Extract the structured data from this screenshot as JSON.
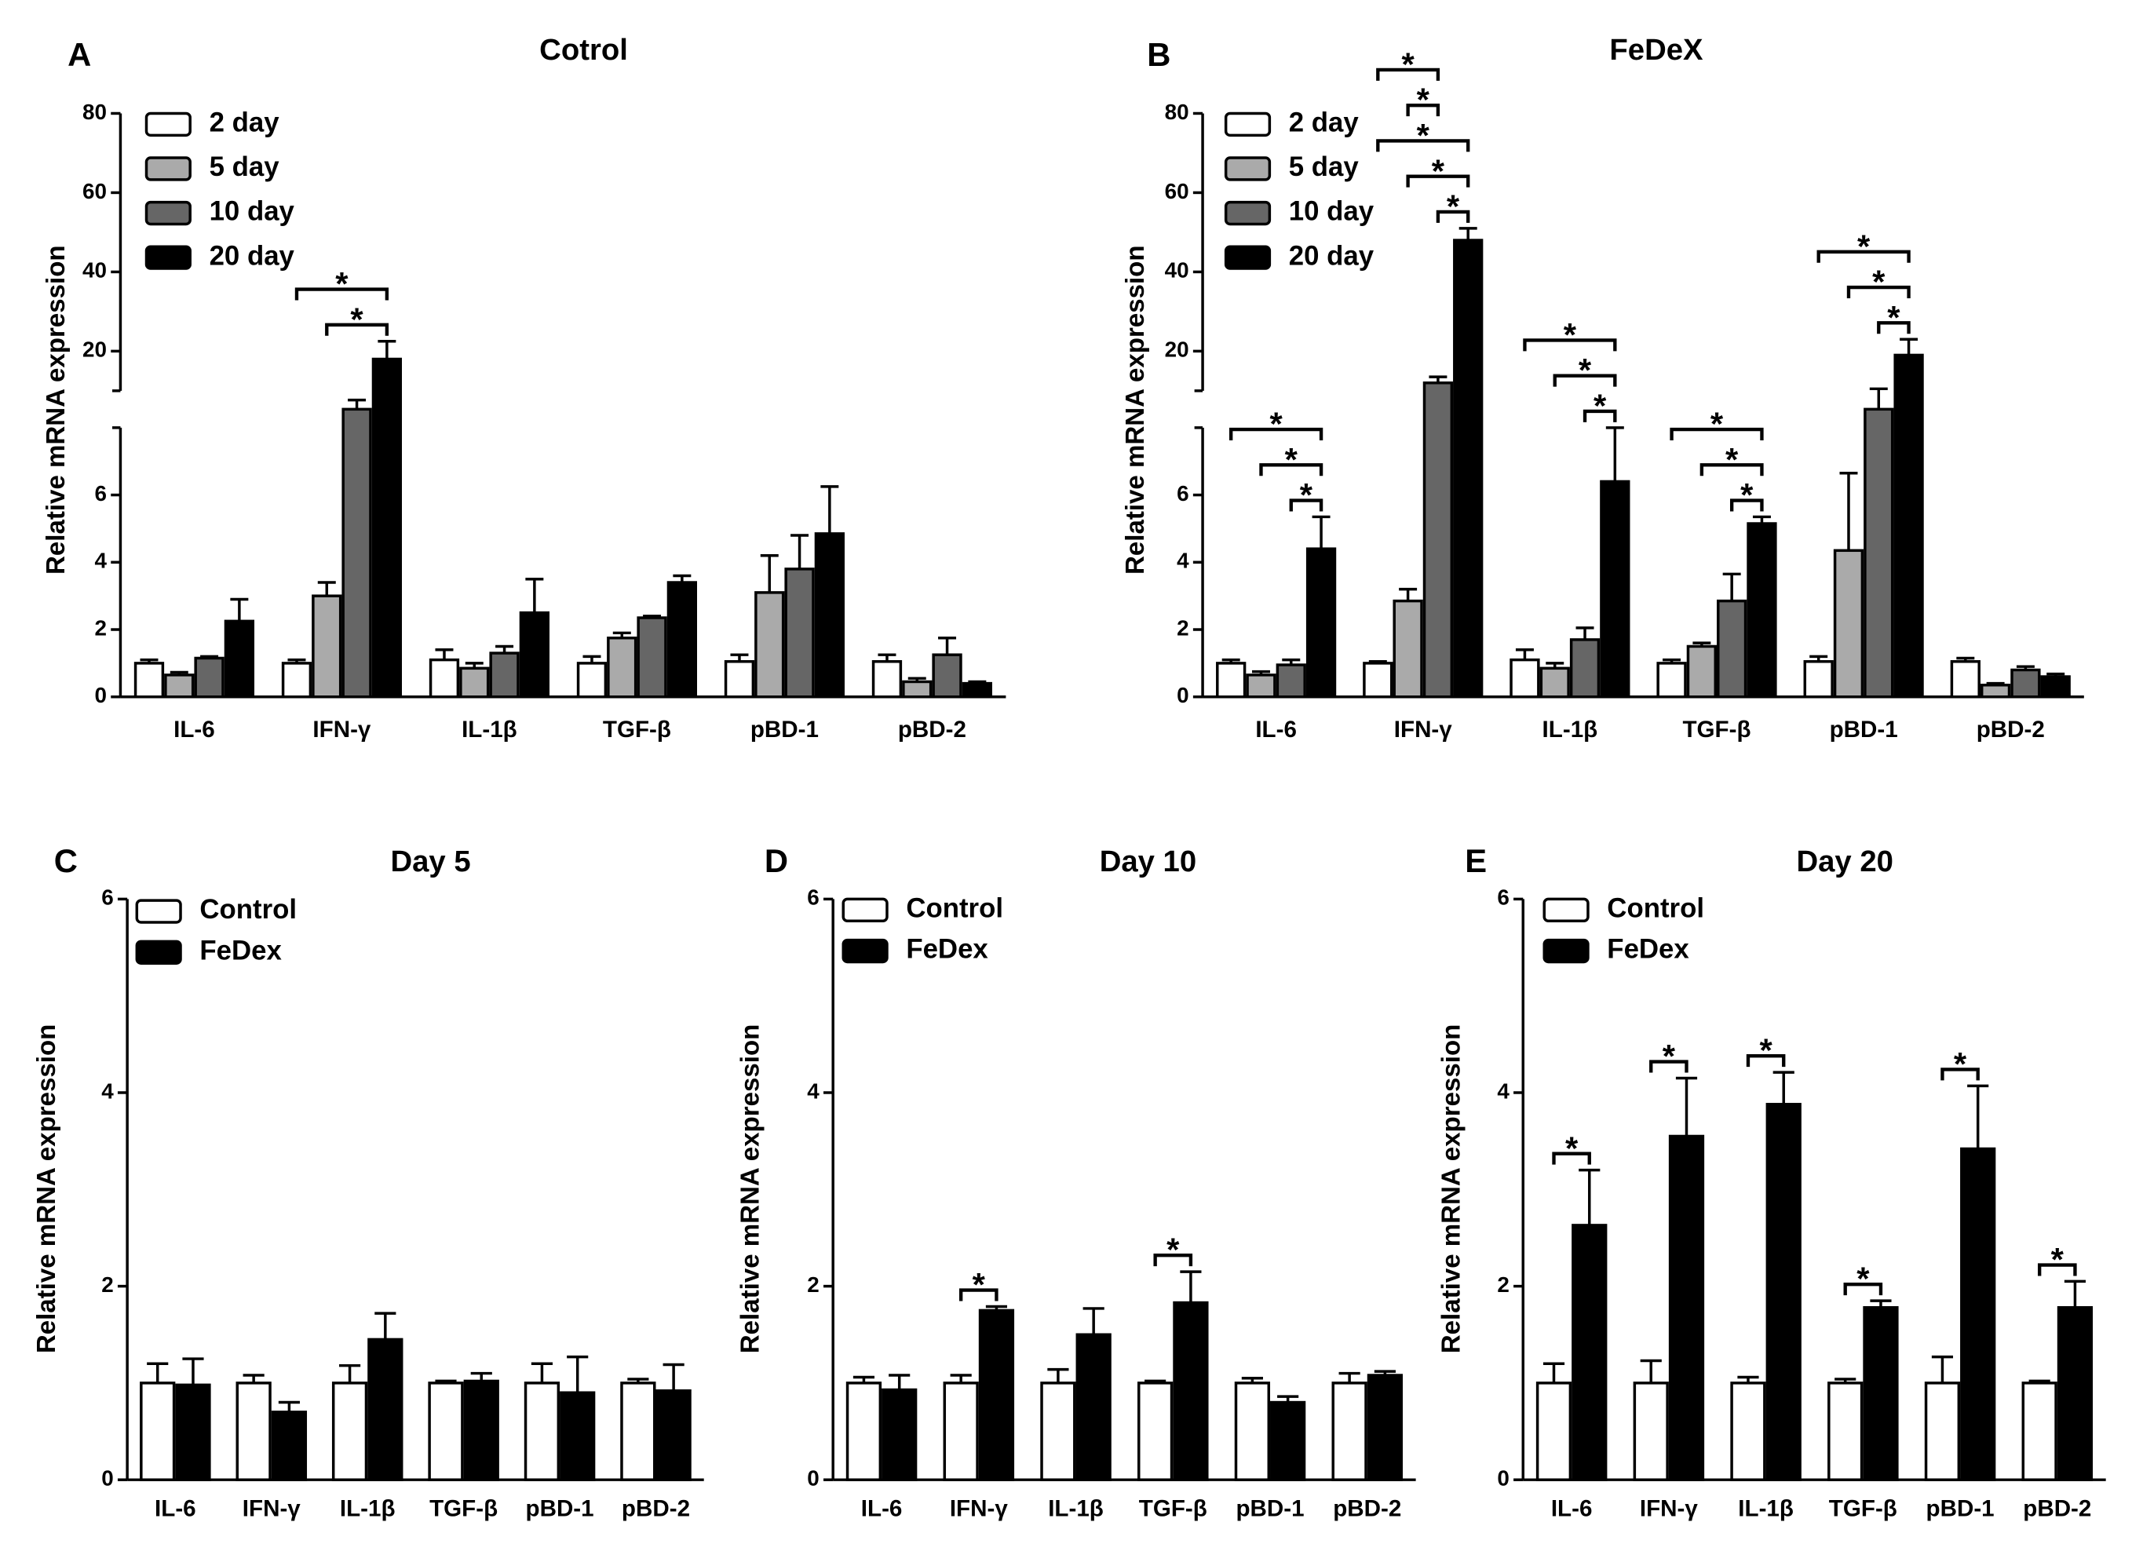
{
  "chart_data": [
    {
      "type": "bar",
      "panel": "A",
      "title": "Cotrol",
      "ylabel": "Relative mRNA expression",
      "categories": [
        "IL-6",
        "IFN-γ",
        "IL-1β",
        "TGF-β",
        "pBD-1",
        "pBD-2"
      ],
      "series": [
        {
          "name": "2 day",
          "color": "#ffffff",
          "values": [
            1.0,
            1.0,
            1.1,
            1.0,
            1.05,
            1.05
          ],
          "errors": [
            0.1,
            0.1,
            0.3,
            0.2,
            0.2,
            0.2
          ]
        },
        {
          "name": "5 day",
          "color": "#aaaaaa",
          "values": [
            0.65,
            3.0,
            0.85,
            1.75,
            3.1,
            0.45
          ],
          "errors": [
            0.08,
            0.4,
            0.15,
            0.15,
            1.1,
            0.1
          ]
        },
        {
          "name": "10 day",
          "color": "#666666",
          "values": [
            1.15,
            9,
            1.3,
            2.35,
            3.8,
            1.25
          ],
          "errors": [
            0.05,
            0.5,
            0.2,
            0.05,
            1.0,
            0.5
          ]
        },
        {
          "name": "20 day",
          "color": "#000000",
          "values": [
            2.25,
            18,
            2.5,
            3.4,
            4.85,
            0.4
          ],
          "errors": [
            0.65,
            4.5,
            1.0,
            0.2,
            1.4,
            0.05
          ]
        }
      ],
      "ylim": [
        0,
        80
      ],
      "axis_break": [
        8,
        10
      ],
      "yticks": [
        0,
        2,
        4,
        6,
        20,
        40,
        60,
        80
      ],
      "legend": "upper left",
      "significance": [
        {
          "category": "IFN-γ",
          "between": [
            "5 day",
            "20 day"
          ],
          "label": "*"
        },
        {
          "category": "IFN-γ",
          "between": [
            "2 day",
            "20 day"
          ],
          "label": "*"
        }
      ]
    },
    {
      "type": "bar",
      "panel": "B",
      "title": "FeDeX",
      "ylabel": "Relative mRNA expression",
      "categories": [
        "IL-6",
        "IFN-γ",
        "IL-1β",
        "TGF-β",
        "pBD-1",
        "pBD-2"
      ],
      "series": [
        {
          "name": "2 day",
          "color": "#ffffff",
          "values": [
            1.0,
            1.0,
            1.1,
            1.0,
            1.05,
            1.05
          ],
          "errors": [
            0.1,
            0.05,
            0.3,
            0.1,
            0.15,
            0.1
          ]
        },
        {
          "name": "5 day",
          "color": "#aaaaaa",
          "values": [
            0.65,
            2.85,
            0.85,
            1.5,
            4.35,
            0.35
          ],
          "errors": [
            0.1,
            0.35,
            0.15,
            0.1,
            2.3,
            0.05
          ]
        },
        {
          "name": "10 day",
          "color": "#666666",
          "values": [
            0.95,
            12,
            1.7,
            2.85,
            9,
            0.8
          ],
          "errors": [
            0.15,
            1.5,
            0.35,
            0.8,
            1.5,
            0.1
          ]
        },
        {
          "name": "20 day",
          "color": "#000000",
          "values": [
            4.4,
            48,
            6.4,
            5.15,
            19,
            0.6
          ],
          "errors": [
            0.95,
            3,
            1.6,
            0.2,
            4,
            0.08
          ]
        }
      ],
      "ylim": [
        0,
        80
      ],
      "axis_break": [
        8,
        10
      ],
      "yticks": [
        0,
        2,
        4,
        6,
        20,
        40,
        60,
        80
      ],
      "legend": "upper left",
      "significance": [
        {
          "category": "IL-6",
          "between": [
            "10 day",
            "20 day"
          ],
          "label": "*"
        },
        {
          "category": "IL-6",
          "between": [
            "5 day",
            "20 day"
          ],
          "label": "*"
        },
        {
          "category": "IL-6",
          "between": [
            "2 day",
            "20 day"
          ],
          "label": "*"
        },
        {
          "category": "IFN-γ",
          "between": [
            "10 day",
            "20 day"
          ],
          "label": "*"
        },
        {
          "category": "IFN-γ",
          "between": [
            "5 day",
            "20 day"
          ],
          "label": "*"
        },
        {
          "category": "IFN-γ",
          "between": [
            "2 day",
            "20 day"
          ],
          "label": "*"
        },
        {
          "category": "IFN-γ",
          "between": [
            "5 day",
            "10 day"
          ],
          "label": "*"
        },
        {
          "category": "IFN-γ",
          "between": [
            "2 day",
            "10 day"
          ],
          "label": "*"
        },
        {
          "category": "IL-1β",
          "between": [
            "10 day",
            "20 day"
          ],
          "label": "*"
        },
        {
          "category": "IL-1β",
          "between": [
            "5 day",
            "20 day"
          ],
          "label": "*"
        },
        {
          "category": "IL-1β",
          "between": [
            "2 day",
            "20 day"
          ],
          "label": "*"
        },
        {
          "category": "TGF-β",
          "between": [
            "10 day",
            "20 day"
          ],
          "label": "*"
        },
        {
          "category": "TGF-β",
          "between": [
            "5 day",
            "20 day"
          ],
          "label": "*"
        },
        {
          "category": "TGF-β",
          "between": [
            "2 day",
            "20 day"
          ],
          "label": "*"
        },
        {
          "category": "pBD-1",
          "between": [
            "10 day",
            "20 day"
          ],
          "label": "*"
        },
        {
          "category": "pBD-1",
          "between": [
            "5 day",
            "20 day"
          ],
          "label": "*"
        },
        {
          "category": "pBD-1",
          "between": [
            "2 day",
            "20 day"
          ],
          "label": "*"
        }
      ]
    },
    {
      "type": "bar",
      "panel": "C",
      "title": "Day 5",
      "ylabel": "Relative mRNA expression",
      "categories": [
        "IL-6",
        "IFN-γ",
        "IL-1β",
        "TGF-β",
        "pBD-1",
        "pBD-2"
      ],
      "series": [
        {
          "name": "Control",
          "color": "#ffffff",
          "values": [
            1,
            1,
            1,
            1,
            1,
            1
          ],
          "errors": [
            0.2,
            0.08,
            0.18,
            0.02,
            0.2,
            0.04
          ]
        },
        {
          "name": "FeDex",
          "color": "#000000",
          "values": [
            0.98,
            0.7,
            1.45,
            1.02,
            0.9,
            0.92
          ],
          "errors": [
            0.27,
            0.1,
            0.27,
            0.08,
            0.37,
            0.27
          ]
        }
      ],
      "ylim": [
        0,
        6
      ],
      "yticks": [
        0,
        2,
        4,
        6
      ],
      "legend": "upper left",
      "significance": []
    },
    {
      "type": "bar",
      "panel": "D",
      "title": "Day 10",
      "ylabel": "Relative mRNA expression",
      "categories": [
        "IL-6",
        "IFN-γ",
        "IL-1β",
        "TGF-β",
        "pBD-1",
        "pBD-2"
      ],
      "series": [
        {
          "name": "Control",
          "color": "#ffffff",
          "values": [
            1,
            1,
            1,
            1,
            1,
            1
          ],
          "errors": [
            0.06,
            0.08,
            0.14,
            0.02,
            0.05,
            0.1
          ]
        },
        {
          "name": "FeDex",
          "color": "#000000",
          "values": [
            0.93,
            1.75,
            1.5,
            1.83,
            0.8,
            1.08
          ],
          "errors": [
            0.15,
            0.04,
            0.27,
            0.32,
            0.06,
            0.04
          ]
        }
      ],
      "ylim": [
        0,
        6
      ],
      "yticks": [
        0,
        2,
        4,
        6
      ],
      "legend": "upper left",
      "significance": [
        {
          "category": "IFN-γ",
          "between": [
            "Control",
            "FeDex"
          ],
          "label": "*"
        },
        {
          "category": "TGF-β",
          "between": [
            "Control",
            "FeDex"
          ],
          "label": "*"
        }
      ]
    },
    {
      "type": "bar",
      "panel": "E",
      "title": "Day 20",
      "ylabel": "Relative mRNA expression",
      "categories": [
        "IL-6",
        "IFN-γ",
        "IL-1β",
        "TGF-β",
        "pBD-1",
        "pBD-2"
      ],
      "series": [
        {
          "name": "Control",
          "color": "#ffffff",
          "values": [
            1,
            1,
            1,
            1,
            1,
            1
          ],
          "errors": [
            0.2,
            0.23,
            0.06,
            0.04,
            0.27,
            0.02
          ]
        },
        {
          "name": "FeDex",
          "color": "#000000",
          "values": [
            2.63,
            3.55,
            3.88,
            1.78,
            3.42,
            1.78
          ],
          "errors": [
            0.57,
            0.6,
            0.33,
            0.07,
            0.65,
            0.27
          ]
        }
      ],
      "ylim": [
        0,
        6
      ],
      "yticks": [
        0,
        2,
        4,
        6
      ],
      "legend": "upper left",
      "significance": [
        {
          "category": "IL-6",
          "between": [
            "Control",
            "FeDex"
          ],
          "label": "*"
        },
        {
          "category": "IFN-γ",
          "between": [
            "Control",
            "FeDex"
          ],
          "label": "*"
        },
        {
          "category": "IL-1β",
          "between": [
            "Control",
            "FeDex"
          ],
          "label": "*"
        },
        {
          "category": "TGF-β",
          "between": [
            "Control",
            "FeDex"
          ],
          "label": "*"
        },
        {
          "category": "pBD-1",
          "between": [
            "Control",
            "FeDex"
          ],
          "label": "*"
        },
        {
          "category": "pBD-2",
          "between": [
            "Control",
            "FeDex"
          ],
          "label": "*"
        }
      ]
    }
  ]
}
